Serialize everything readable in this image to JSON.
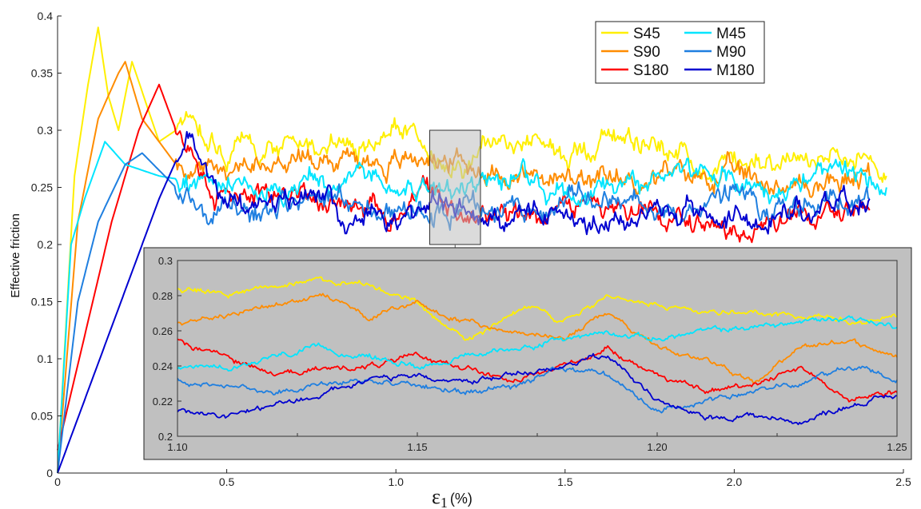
{
  "chart_data": {
    "type": "line",
    "title": "",
    "ylabel": "Effective friction",
    "xlabel_symbol": "ε",
    "xlabel_sub": "1",
    "xlabel_unit": "(%)",
    "xlim": [
      0,
      2.5
    ],
    "ylim": [
      0,
      0.4
    ],
    "xticks": [
      "0",
      "0.5",
      "1.0",
      "1.5",
      "2.0",
      "2.5"
    ],
    "yticks": [
      "0",
      "0.05",
      "0.1",
      "0.15",
      "0.2",
      "0.25",
      "0.3",
      "0.35",
      "0.4"
    ],
    "legend_position": "top-right",
    "series": [
      {
        "name": "S45",
        "color": "#ffef00",
        "x": [
          0,
          0.05,
          0.09,
          0.12,
          0.15,
          0.18,
          0.22,
          0.3,
          0.4,
          0.5,
          0.7,
          0.9,
          1.0,
          1.1,
          1.2,
          1.3,
          1.5,
          1.7,
          1.9,
          2.1,
          2.3,
          2.45
        ],
        "y": [
          0,
          0.26,
          0.34,
          0.39,
          0.33,
          0.3,
          0.36,
          0.29,
          0.31,
          0.28,
          0.29,
          0.28,
          0.3,
          0.28,
          0.27,
          0.29,
          0.28,
          0.3,
          0.27,
          0.28,
          0.27,
          0.26
        ]
      },
      {
        "name": "S90",
        "color": "#ff8c00",
        "x": [
          0,
          0.06,
          0.12,
          0.18,
          0.2,
          0.25,
          0.35,
          0.45,
          0.6,
          0.8,
          1.0,
          1.1,
          1.2,
          1.4,
          1.6,
          1.8,
          2.0,
          2.2,
          2.4
        ],
        "y": [
          0,
          0.22,
          0.31,
          0.35,
          0.36,
          0.31,
          0.27,
          0.26,
          0.27,
          0.28,
          0.27,
          0.28,
          0.27,
          0.26,
          0.25,
          0.26,
          0.26,
          0.25,
          0.26
        ]
      },
      {
        "name": "S180",
        "color": "#ff0000",
        "x": [
          0,
          0.08,
          0.16,
          0.24,
          0.3,
          0.35,
          0.42,
          0.5,
          0.7,
          0.9,
          1.0,
          1.1,
          1.2,
          1.4,
          1.6,
          1.8,
          2.0,
          2.2,
          2.4
        ],
        "y": [
          0.02,
          0.12,
          0.22,
          0.3,
          0.34,
          0.3,
          0.26,
          0.24,
          0.25,
          0.22,
          0.22,
          0.25,
          0.23,
          0.22,
          0.23,
          0.22,
          0.21,
          0.22,
          0.23
        ]
      },
      {
        "name": "M45",
        "color": "#00e5ff",
        "x": [
          0,
          0.04,
          0.08,
          0.14,
          0.2,
          0.3,
          0.5,
          0.7,
          0.9,
          1.1,
          1.3,
          1.5,
          1.7,
          1.9,
          2.1,
          2.3,
          2.45
        ],
        "y": [
          0,
          0.2,
          0.24,
          0.29,
          0.27,
          0.26,
          0.25,
          0.25,
          0.26,
          0.25,
          0.26,
          0.25,
          0.25,
          0.26,
          0.25,
          0.26,
          0.25
        ]
      },
      {
        "name": "M90",
        "color": "#1f7fe0",
        "x": [
          0,
          0.06,
          0.12,
          0.2,
          0.25,
          0.35,
          0.45,
          0.6,
          0.8,
          1.0,
          1.2,
          1.4,
          1.6,
          1.8,
          2.0,
          2.2,
          2.4
        ],
        "y": [
          0,
          0.15,
          0.22,
          0.27,
          0.28,
          0.25,
          0.23,
          0.23,
          0.24,
          0.23,
          0.23,
          0.23,
          0.24,
          0.23,
          0.24,
          0.23,
          0.24
        ]
      },
      {
        "name": "M180",
        "color": "#0000d0",
        "x": [
          0,
          0.1,
          0.2,
          0.3,
          0.39,
          0.45,
          0.6,
          0.8,
          0.85,
          0.9,
          1.0,
          1.1,
          1.2,
          1.4,
          1.6,
          1.8,
          2.0,
          2.2,
          2.4
        ],
        "y": [
          0,
          0.08,
          0.16,
          0.24,
          0.3,
          0.25,
          0.23,
          0.24,
          0.2,
          0.23,
          0.22,
          0.24,
          0.22,
          0.23,
          0.22,
          0.23,
          0.22,
          0.23,
          0.24
        ]
      }
    ],
    "highlight_box": {
      "x": [
        1.1,
        1.25
      ],
      "y": [
        0.2,
        0.3
      ]
    },
    "inset": {
      "xlim": [
        1.1,
        1.25
      ],
      "ylim": [
        0.2,
        0.3
      ],
      "xticks": [
        "1.10",
        "1.15",
        "1.20",
        "1.25"
      ],
      "yticks": [
        "0.2",
        "0.22",
        "0.24",
        "0.26",
        "0.28",
        "0.3"
      ],
      "background": "#c0c0c0",
      "series": [
        {
          "name": "S45",
          "x": [
            1.1,
            1.11,
            1.12,
            1.13,
            1.14,
            1.15,
            1.155,
            1.16,
            1.17,
            1.175,
            1.18,
            1.19,
            1.2,
            1.21,
            1.22,
            1.23,
            1.24,
            1.25
          ],
          "y": [
            0.285,
            0.28,
            0.285,
            0.29,
            0.285,
            0.275,
            0.265,
            0.255,
            0.27,
            0.275,
            0.265,
            0.28,
            0.275,
            0.27,
            0.27,
            0.268,
            0.266,
            0.268
          ]
        },
        {
          "name": "S90",
          "x": [
            1.1,
            1.11,
            1.12,
            1.13,
            1.14,
            1.15,
            1.16,
            1.17,
            1.18,
            1.19,
            1.2,
            1.21,
            1.22,
            1.23,
            1.24,
            1.25
          ],
          "y": [
            0.265,
            0.268,
            0.275,
            0.28,
            0.268,
            0.275,
            0.265,
            0.26,
            0.255,
            0.27,
            0.25,
            0.245,
            0.23,
            0.25,
            0.255,
            0.245
          ]
        },
        {
          "name": "S180",
          "x": [
            1.1,
            1.11,
            1.12,
            1.13,
            1.14,
            1.15,
            1.16,
            1.17,
            1.18,
            1.19,
            1.2,
            1.21,
            1.22,
            1.23,
            1.24,
            1.25
          ],
          "y": [
            0.255,
            0.245,
            0.235,
            0.238,
            0.24,
            0.245,
            0.24,
            0.23,
            0.24,
            0.25,
            0.235,
            0.225,
            0.23,
            0.24,
            0.22,
            0.225
          ]
        },
        {
          "name": "M45",
          "x": [
            1.1,
            1.11,
            1.12,
            1.13,
            1.14,
            1.15,
            1.16,
            1.17,
            1.18,
            1.19,
            1.2,
            1.21,
            1.22,
            1.23,
            1.24,
            1.25
          ],
          "y": [
            0.238,
            0.24,
            0.245,
            0.25,
            0.245,
            0.24,
            0.245,
            0.25,
            0.255,
            0.26,
            0.255,
            0.26,
            0.262,
            0.265,
            0.268,
            0.262
          ]
        },
        {
          "name": "M90",
          "x": [
            1.1,
            1.11,
            1.12,
            1.13,
            1.14,
            1.15,
            1.16,
            1.17,
            1.18,
            1.19,
            1.2,
            1.21,
            1.22,
            1.23,
            1.24,
            1.25
          ],
          "y": [
            0.232,
            0.228,
            0.225,
            0.23,
            0.232,
            0.23,
            0.225,
            0.228,
            0.24,
            0.235,
            0.215,
            0.22,
            0.225,
            0.23,
            0.24,
            0.232
          ]
        },
        {
          "name": "M180",
          "x": [
            1.1,
            1.11,
            1.12,
            1.13,
            1.14,
            1.15,
            1.16,
            1.17,
            1.18,
            1.19,
            1.2,
            1.21,
            1.22,
            1.23,
            1.24,
            1.25
          ],
          "y": [
            0.215,
            0.212,
            0.218,
            0.225,
            0.232,
            0.235,
            0.23,
            0.235,
            0.24,
            0.245,
            0.22,
            0.21,
            0.212,
            0.208,
            0.218,
            0.223
          ]
        }
      ]
    }
  }
}
